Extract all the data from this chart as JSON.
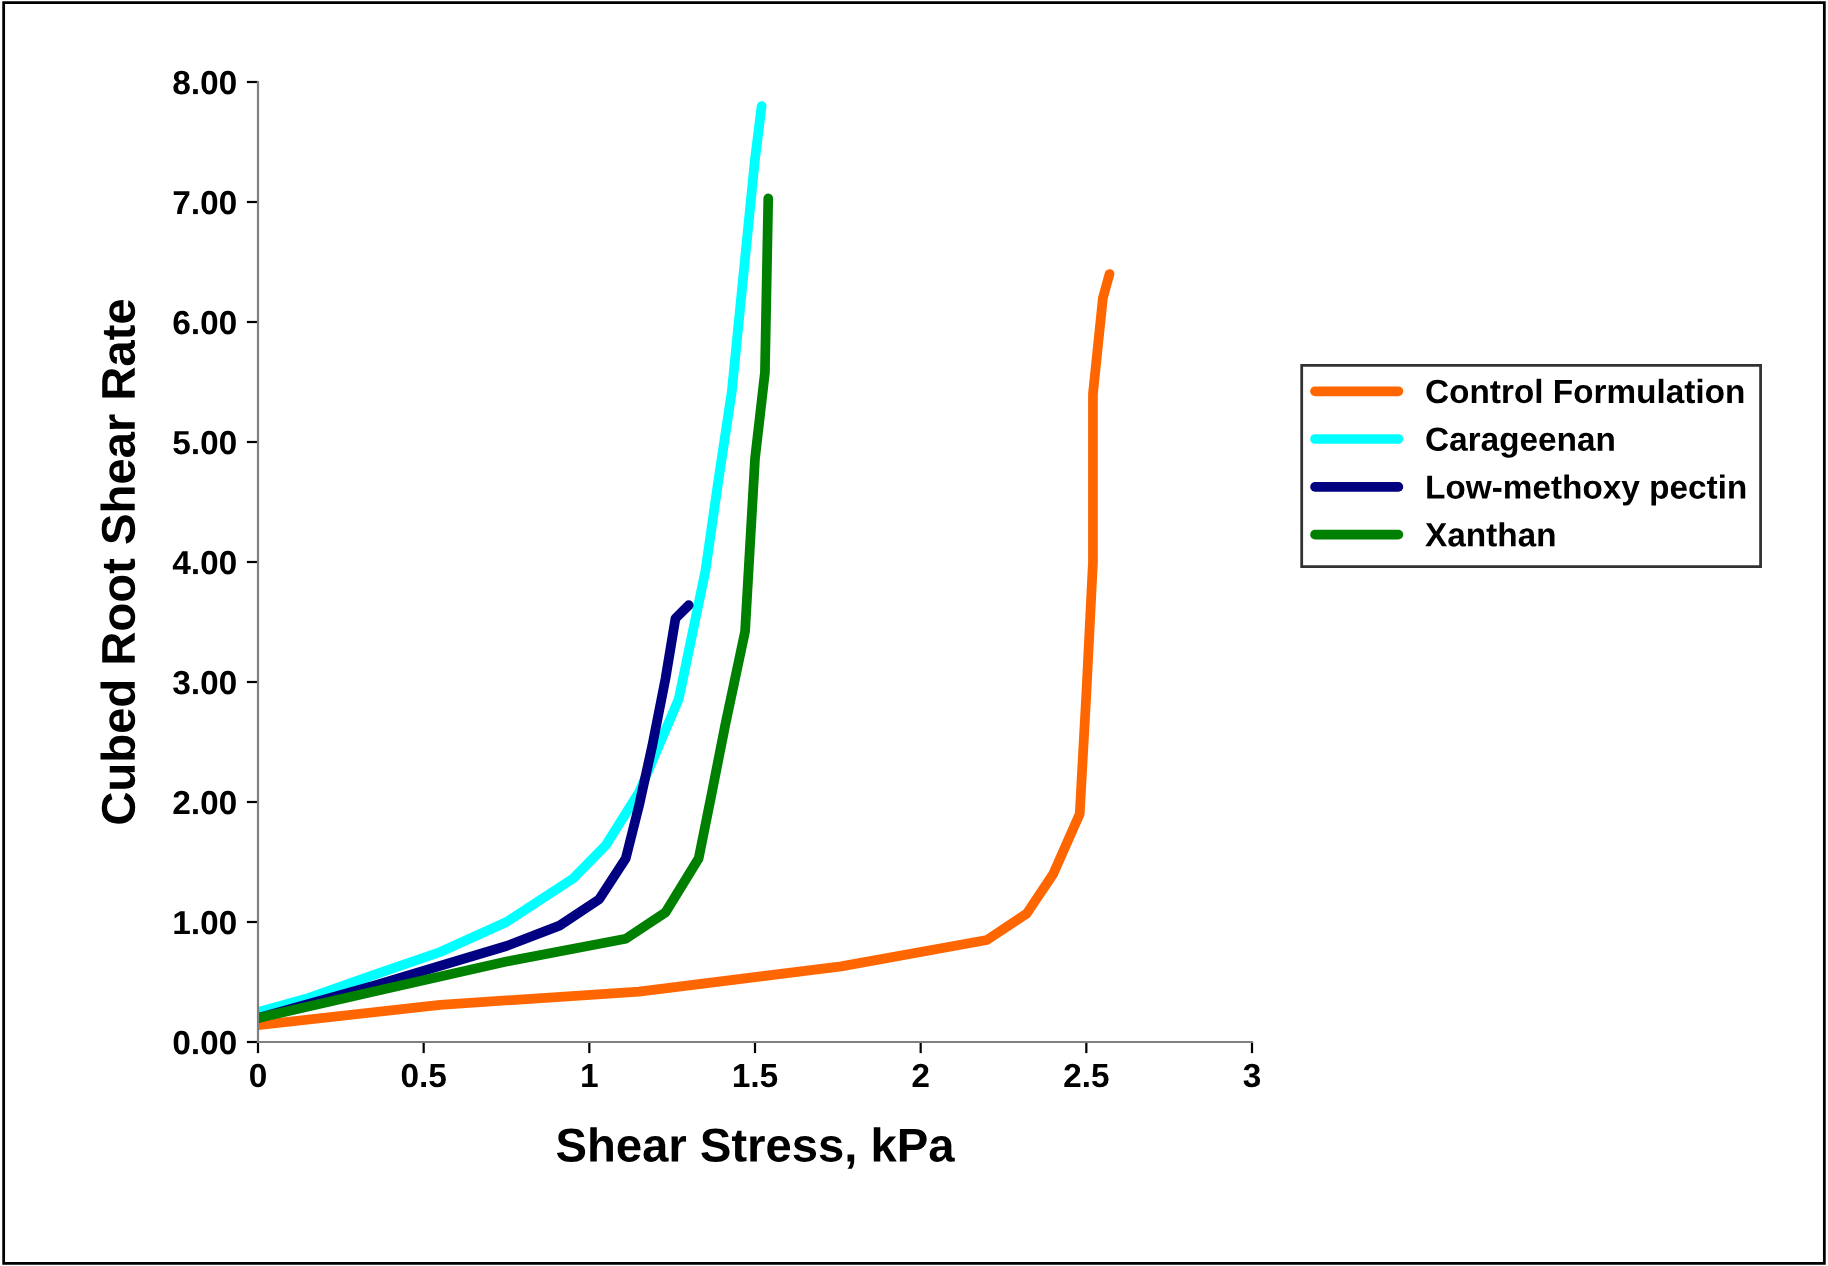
{
  "chart_data": {
    "type": "line",
    "xlabel": "Shear Stress, kPa",
    "ylabel": "Cubed Root Shear Rate",
    "xlim": [
      0,
      3
    ],
    "xticks": [
      0,
      0.5,
      1,
      1.5,
      2,
      2.5,
      3
    ],
    "ylim": [
      0,
      8
    ],
    "yticks": [
      {
        "value": 0,
        "label": "0.00"
      },
      {
        "value": 1,
        "label": "1.00"
      },
      {
        "value": 2,
        "label": "2.00"
      },
      {
        "value": 3,
        "label": "3.00"
      },
      {
        "value": 4,
        "label": "4.00"
      },
      {
        "value": 5,
        "label": "5.00"
      },
      {
        "value": 6,
        "label": "6.00"
      },
      {
        "value": 7,
        "label": "7.00"
      },
      {
        "value": 8,
        "label": "8.00"
      }
    ],
    "grid": false,
    "legend": "right",
    "marker": "none",
    "line_style": "solid",
    "series": [
      {
        "name": "Control Formulation",
        "color": "#ff6600",
        "x": [
          0,
          0.55,
          1.15,
          1.76,
          2.2,
          2.32,
          2.4,
          2.48,
          2.5,
          2.52,
          2.52,
          2.55,
          2.57
        ],
        "values": [
          0.14,
          0.31,
          0.42,
          0.63,
          0.85,
          1.07,
          1.4,
          1.9,
          2.9,
          4.0,
          5.4,
          6.2,
          6.4
        ]
      },
      {
        "name": "Carageenan",
        "color": "#00ffff",
        "x": [
          0,
          0.145,
          0.35,
          0.55,
          0.75,
          0.95,
          1.05,
          1.15,
          1.27,
          1.35,
          1.39,
          1.43,
          1.47,
          1.5,
          1.52
        ],
        "values": [
          0.25,
          0.36,
          0.56,
          0.75,
          1.0,
          1.36,
          1.64,
          2.08,
          2.86,
          3.92,
          4.69,
          5.42,
          6.53,
          7.36,
          7.8
        ]
      },
      {
        "name": "Low-methoxy pectin",
        "color": "#000080",
        "x": [
          0,
          0.35,
          0.75,
          0.91,
          1.03,
          1.11,
          1.15,
          1.19,
          1.23,
          1.26,
          1.3
        ],
        "values": [
          0.2,
          0.47,
          0.8,
          0.97,
          1.19,
          1.53,
          1.97,
          2.47,
          3.03,
          3.53,
          3.64
        ]
      },
      {
        "name": "Xanthan",
        "color": "#008000",
        "x": [
          0,
          0.35,
          0.75,
          1.11,
          1.23,
          1.33,
          1.37,
          1.41,
          1.47,
          1.5,
          1.53,
          1.54
        ],
        "values": [
          0.2,
          0.42,
          0.67,
          0.86,
          1.08,
          1.53,
          2.08,
          2.64,
          3.42,
          4.86,
          5.58,
          7.03
        ]
      }
    ]
  }
}
